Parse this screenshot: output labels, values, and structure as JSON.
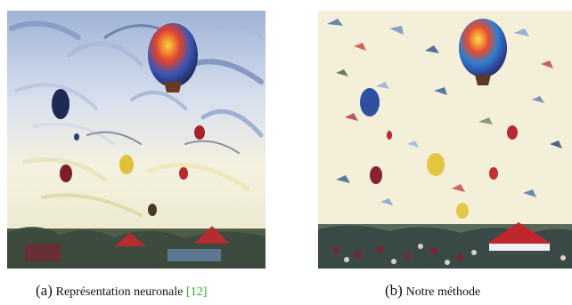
{
  "figures": [
    {
      "label": "(a)",
      "caption": "Représentation neuronale",
      "citation_open": "[",
      "citation": "12",
      "citation_close": "]"
    },
    {
      "label": "(b)",
      "caption": "Notre méthode"
    }
  ],
  "colors": {
    "citation": "#22b522",
    "sky_a": "#c9d6ea",
    "sky_b": "#f3efd8",
    "crowd": "#3b4a3e",
    "tent_red": "#c0272d"
  }
}
